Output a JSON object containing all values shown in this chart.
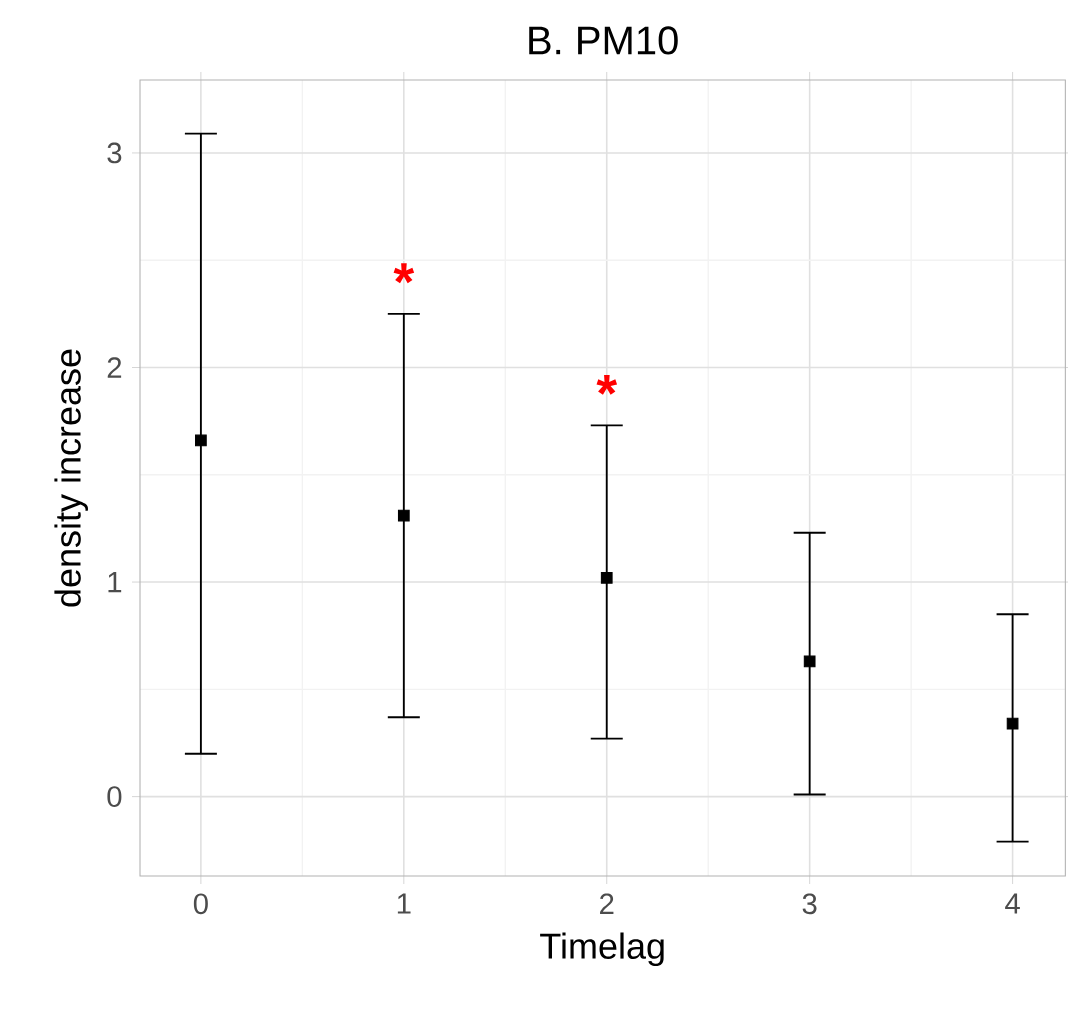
{
  "chart_data": {
    "type": "scatter",
    "title": "B. PM10",
    "xlabel": "Timelag",
    "ylabel": "density increase",
    "x": [
      0,
      1,
      2,
      3,
      4
    ],
    "values": [
      1.66,
      1.31,
      1.02,
      0.63,
      0.34
    ],
    "errors": [
      [
        0.2,
        3.09
      ],
      [
        0.37,
        2.25
      ],
      [
        0.27,
        1.73
      ],
      [
        0.01,
        1.23
      ],
      [
        -0.21,
        0.85
      ]
    ],
    "color": "#000000",
    "marker": "square",
    "xlim": [
      -0.3,
      4.26
    ],
    "ylim": [
      -0.37,
      3.34
    ],
    "xticks": [
      0,
      1,
      2,
      3,
      4
    ],
    "yticks": [
      0,
      1,
      2,
      3
    ],
    "grid": true,
    "annotations": [
      {
        "text": "*",
        "x": 1,
        "y": 2.25
      },
      {
        "text": "*",
        "x": 2,
        "y": 1.73
      }
    ]
  }
}
